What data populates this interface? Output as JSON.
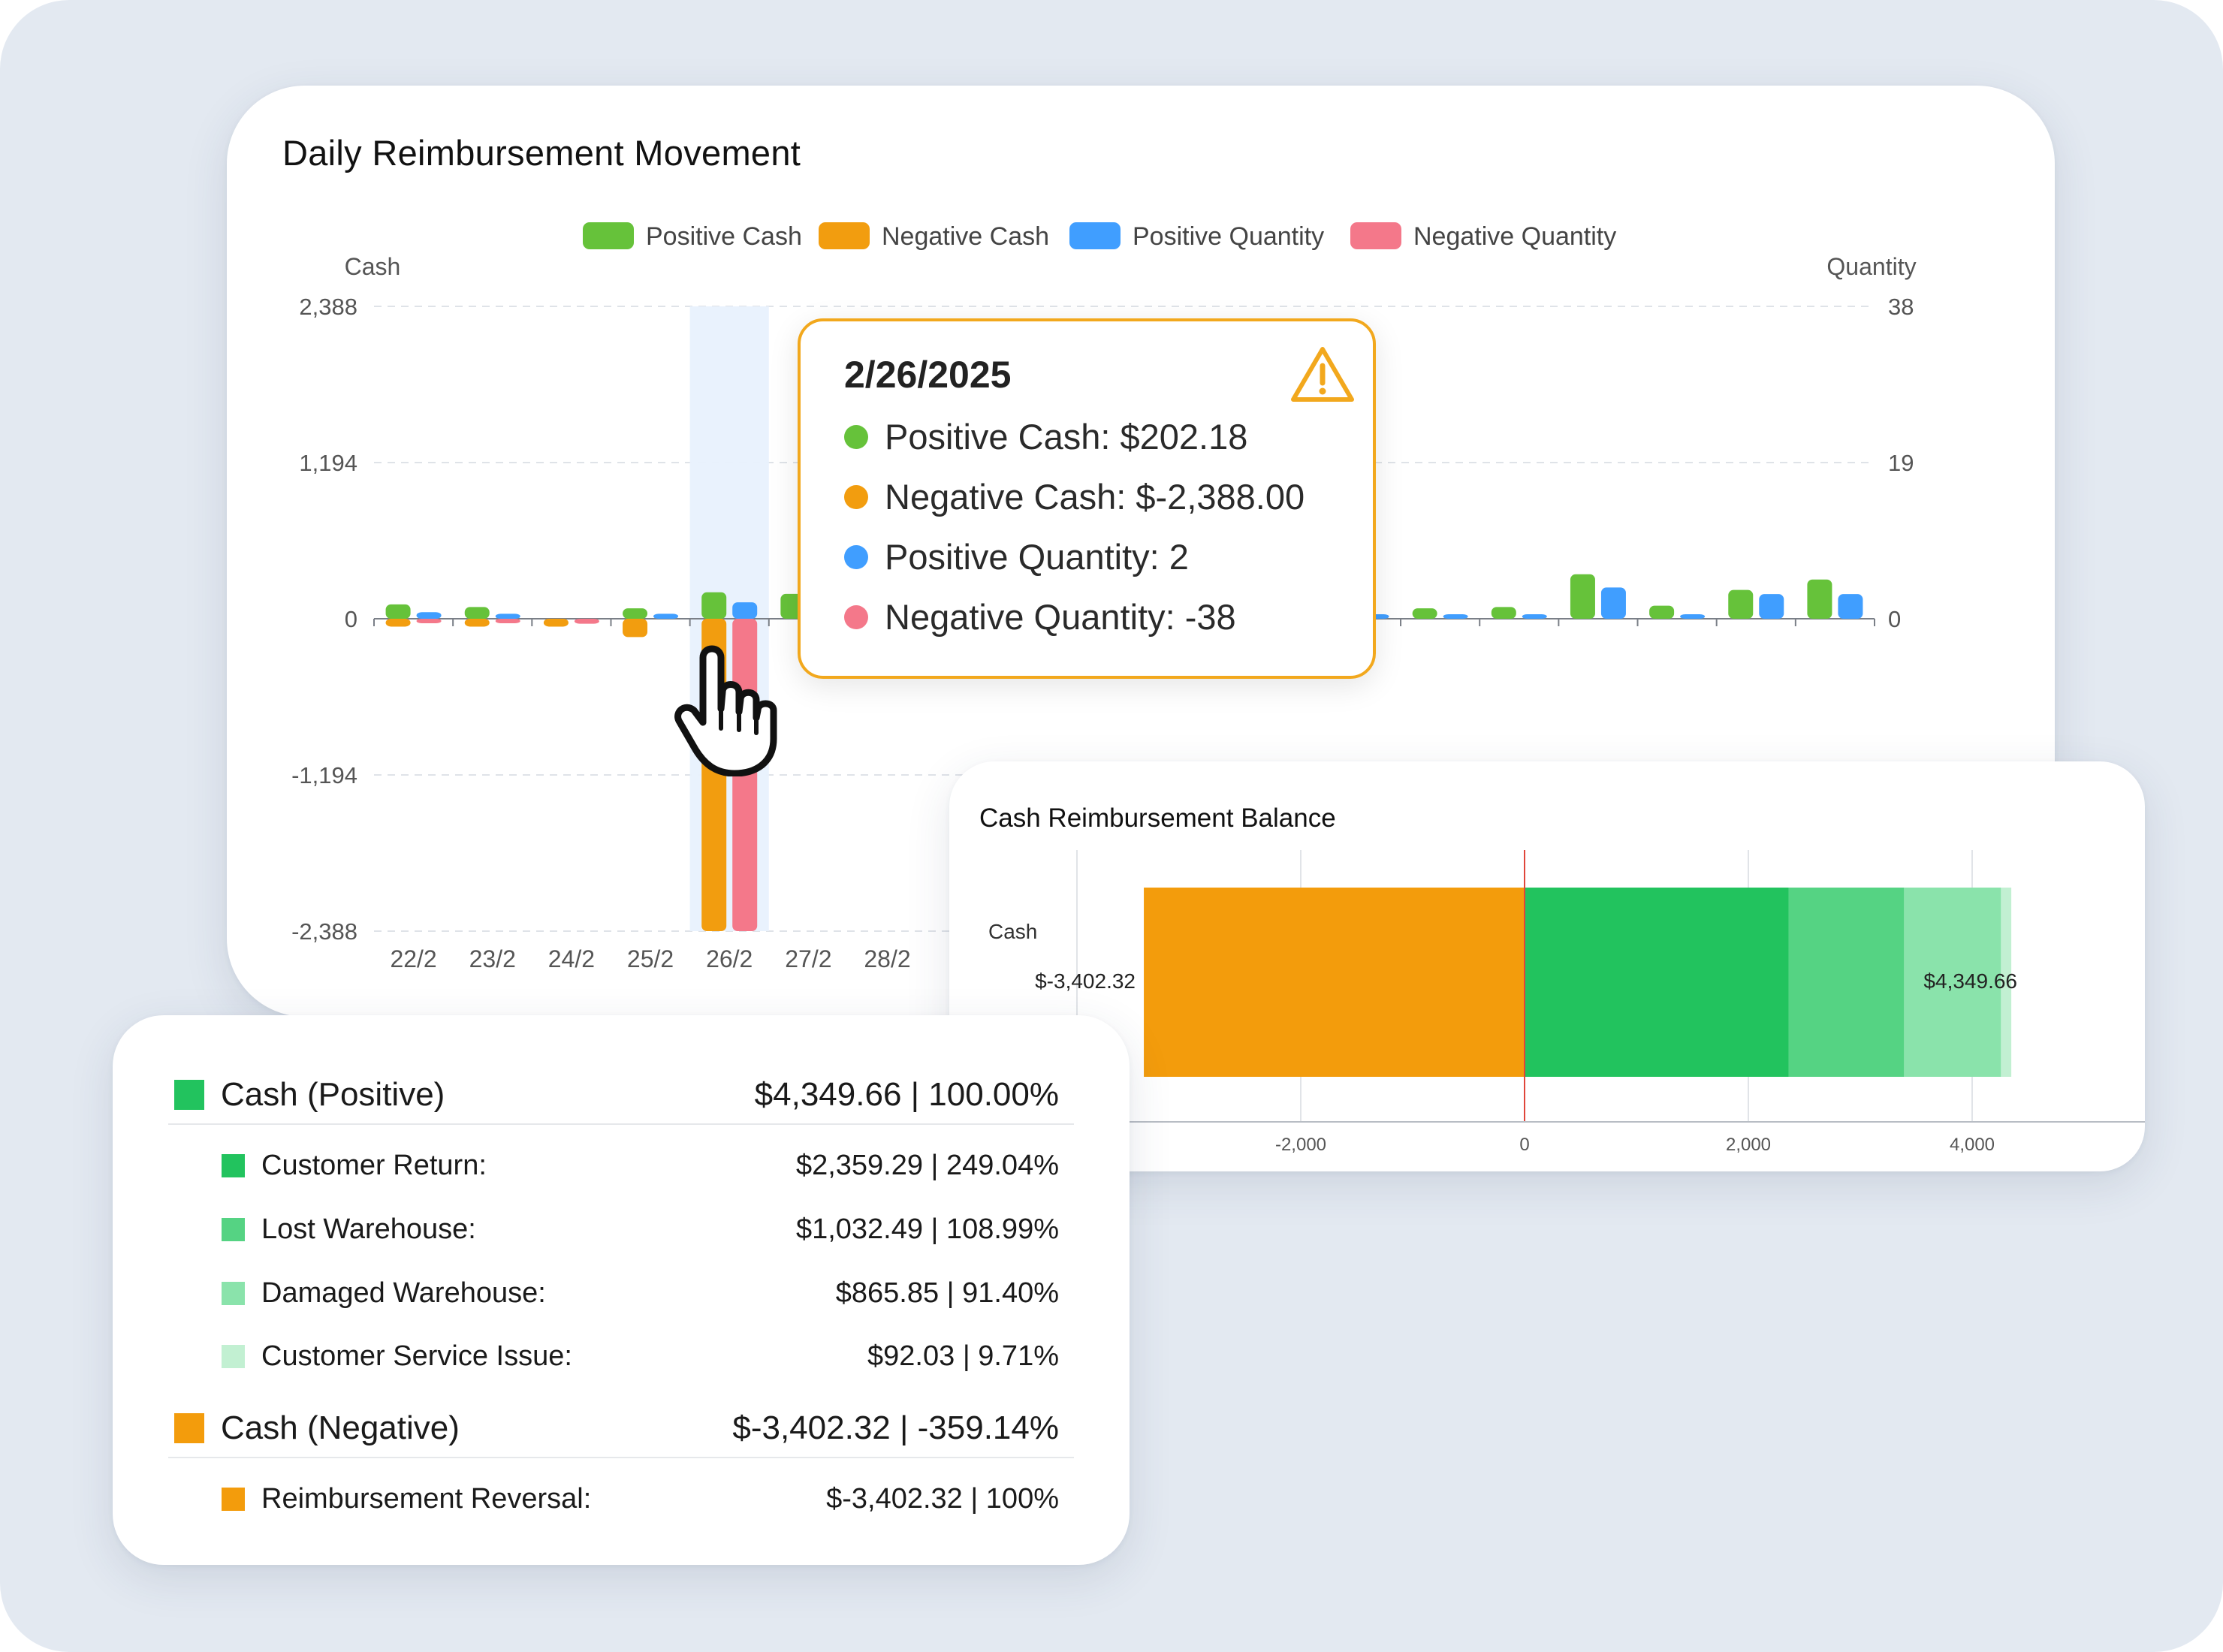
{
  "main": {
    "title": "Daily Reimbursement Movement",
    "legend": [
      {
        "label": "Positive Cash",
        "color": "#66c23a"
      },
      {
        "label": "Negative Cash",
        "color": "#f29d0f"
      },
      {
        "label": "Positive Quantity",
        "color": "#409eff"
      },
      {
        "label": "Negative Quantity",
        "color": "#f4788a"
      }
    ],
    "left_axis_label": "Cash",
    "right_axis_label": "Quantity"
  },
  "tooltip": {
    "date": "2/26/2025",
    "rows": [
      {
        "text": "Positive Cash: $202.18",
        "color": "#66c23a"
      },
      {
        "text": "Negative Cash: $-2,388.00",
        "color": "#f29d0f"
      },
      {
        "text": "Positive Quantity: 2",
        "color": "#409eff"
      },
      {
        "text": "Negative Quantity: -38",
        "color": "#f4788a"
      }
    ],
    "icon": "warning-triangle-icon",
    "accent": "#f2a81d"
  },
  "chart_data": [
    {
      "type": "bar",
      "title": "Daily Reimbursement Movement",
      "ylabel": "Cash",
      "y2label": "Quantity",
      "ylim": [
        -2388,
        2388
      ],
      "y2lim": [
        -38,
        38
      ],
      "yticks": [
        "2,388",
        "1,194",
        "0",
        "-1,194",
        "-2,388"
      ],
      "y2ticks": [
        "38",
        "19",
        "0"
      ],
      "categories": [
        "22/2",
        "23/2",
        "24/2",
        "25/2",
        "26/2",
        "27/2",
        "28/2",
        "",
        "",
        "",
        "",
        "",
        "",
        "",
        "",
        "",
        "",
        "",
        ""
      ],
      "highlight_index": 4,
      "series": [
        {
          "name": "Positive Cash",
          "axis": "left",
          "color": "#66c23a",
          "values": [
            110,
            90,
            0,
            80,
            202.18,
            190,
            200,
            140,
            60,
            0,
            0,
            0,
            0,
            80,
            90,
            340,
            100,
            220,
            300
          ]
        },
        {
          "name": "Negative Cash",
          "axis": "left",
          "color": "#f29d0f",
          "values": [
            -60,
            -60,
            -60,
            -140,
            -2388,
            0,
            0,
            0,
            0,
            0,
            0,
            0,
            0,
            0,
            0,
            0,
            0,
            0,
            0
          ]
        },
        {
          "name": "Positive Quantity",
          "axis": "right",
          "color": "#409eff",
          "values": [
            0.8,
            0.6,
            0,
            0.6,
            2,
            0,
            0,
            0,
            0,
            0,
            0,
            0,
            0.5,
            0.5,
            0.5,
            3.8,
            0.5,
            3,
            3
          ]
        },
        {
          "name": "Negative Quantity",
          "axis": "right",
          "color": "#f4788a",
          "values": [
            -0.5,
            -0.5,
            -0.6,
            0,
            -38,
            0,
            0,
            0,
            0,
            0,
            0,
            0,
            0,
            0,
            0,
            0,
            0,
            0,
            0
          ]
        }
      ]
    },
    {
      "type": "bar",
      "orientation": "horizontal",
      "stacked": true,
      "title": "Cash Reimbursement Balance",
      "categories": [
        "Cash"
      ],
      "xlim": [
        -2000,
        5000
      ],
      "xticks": [
        "-2,000",
        "0",
        "2,000",
        "4,000"
      ],
      "negative_label": "$-3,402.32",
      "positive_label": "$4,349.66",
      "series": [
        {
          "name": "Reimbursement Reversal",
          "value": -3402.32,
          "color": "#f39c0c"
        },
        {
          "name": "Customer Return",
          "value": 2359.29,
          "color": "#22c35e"
        },
        {
          "name": "Lost Warehouse",
          "value": 1032.49,
          "color": "#55d383"
        },
        {
          "name": "Damaged Warehouse",
          "value": 865.85,
          "color": "#8ae3ab"
        },
        {
          "name": "Customer Service Issue",
          "value": 92.03,
          "color": "#c2f0d2"
        }
      ]
    }
  ],
  "breakdown": {
    "groups": [
      {
        "label": "Cash (Positive)",
        "value": "$4,349.66 | 100.00%",
        "color": "#22c35e",
        "items": [
          {
            "label": "Customer Return:",
            "value": "$2,359.29 | 249.04%",
            "color": "#22c35e"
          },
          {
            "label": "Lost Warehouse:",
            "value": "$1,032.49 | 108.99%",
            "color": "#55d383"
          },
          {
            "label": "Damaged Warehouse:",
            "value": "$865.85 | 91.40%",
            "color": "#8ae3ab"
          },
          {
            "label": "Customer Service Issue:",
            "value": "$92.03 | 9.71%",
            "color": "#c2f0d2"
          }
        ]
      },
      {
        "label": "Cash (Negative)",
        "value": "$-3,402.32 | -359.14%",
        "color": "#f39c0c",
        "items": [
          {
            "label": "Reimbursement Reversal:",
            "value": "$-3,402.32 | 100%",
            "color": "#f39c0c"
          }
        ]
      }
    ]
  }
}
